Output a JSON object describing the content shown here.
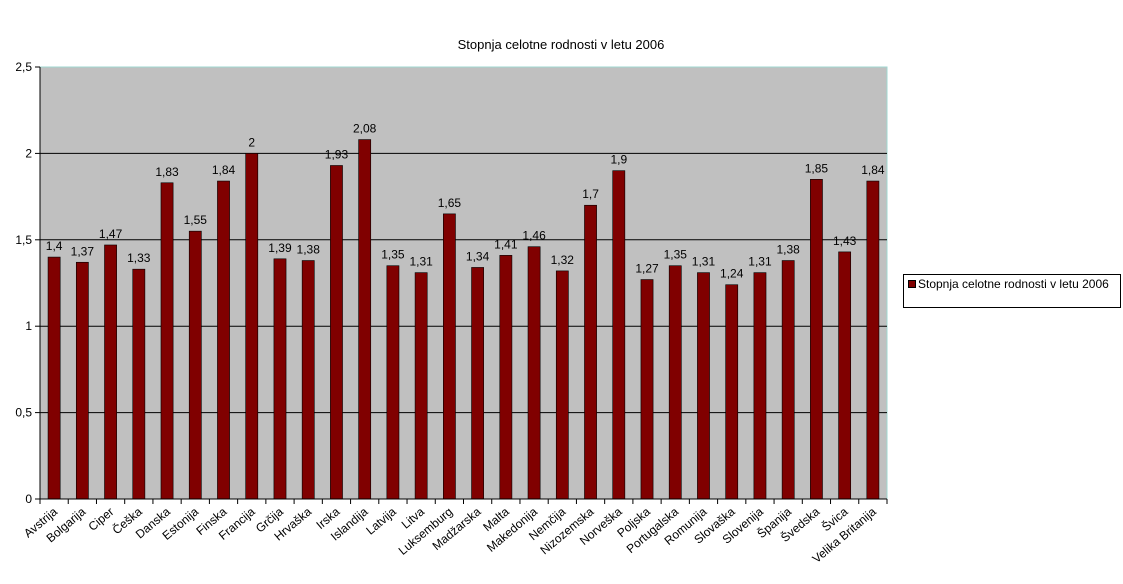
{
  "chart_data": {
    "type": "bar",
    "title": "Stopnja celotne rodnosti v letu 2006",
    "xlabel": "",
    "ylabel": "",
    "ylim": [
      0,
      2.5
    ],
    "y_ticks": [
      "0",
      "0,5",
      "1",
      "1,5",
      "2",
      "2,5"
    ],
    "categories": [
      "Avstrija",
      "Bolgarija",
      "Ciper",
      "Češka",
      "Danska",
      "Estonija",
      "Finska",
      "Francija",
      "Grčija",
      "Hrvaška",
      "Irska",
      "Islandija",
      "Latvija",
      "Litva",
      "Luksemburg",
      "Madžarska",
      "Malta",
      "Makedonija",
      "Nemčija",
      "Nizozemska",
      "Norveška",
      "Poljska",
      "Portugalska",
      "Romunija",
      "Slovaška",
      "Slovenija",
      "Španija",
      "Švedska",
      "Švica",
      "Velika Britanija"
    ],
    "series": [
      {
        "name": "Stopnja celotne rodnosti v letu 2006",
        "values": [
          1.4,
          1.37,
          1.47,
          1.33,
          1.83,
          1.55,
          1.84,
          2,
          1.39,
          1.38,
          1.93,
          2.08,
          1.35,
          1.31,
          1.65,
          1.34,
          1.41,
          1.46,
          1.32,
          1.7,
          1.9,
          1.27,
          1.35,
          1.31,
          1.24,
          1.31,
          1.38,
          1.85,
          1.43,
          1.84
        ],
        "data_labels": [
          "1,4",
          "1,37",
          "1,47",
          "1,33",
          "1,83",
          "1,55",
          "1,84",
          "2",
          "1,39",
          "1,38",
          "1,93",
          "2,08",
          "1,35",
          "1,31",
          "1,65",
          "1,34",
          "1,41",
          "1,46",
          "1,32",
          "1,7",
          "1,9",
          "1,27",
          "1,35",
          "1,31",
          "1,24",
          "1,31",
          "1,38",
          "1,85",
          "1,43",
          "1,84"
        ]
      }
    ],
    "grid": true,
    "legend_position": "right",
    "colors": {
      "bar": "#800000",
      "plot_background": "#c0c0c0",
      "gridline": "#000000",
      "plot_border": "#9fd7d1"
    }
  },
  "legend": {
    "label": "Stopnja celotne rodnosti v letu 2006"
  }
}
